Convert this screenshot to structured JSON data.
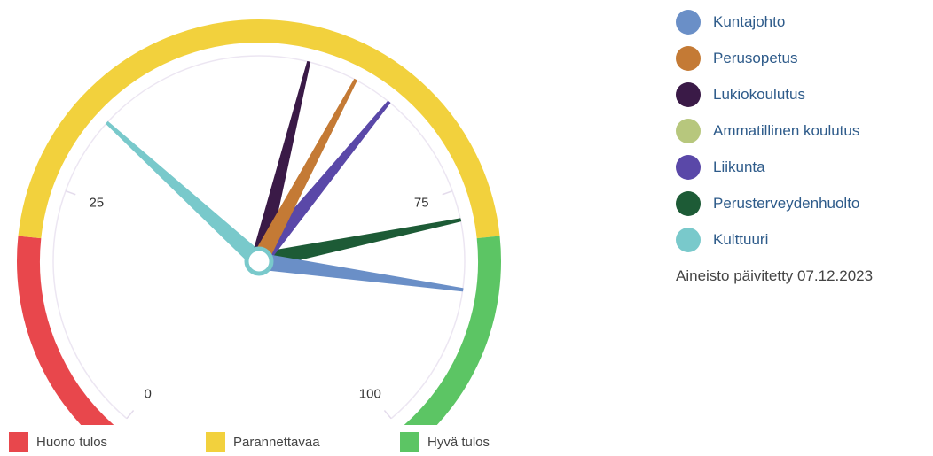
{
  "chart_data": {
    "type": "gauge",
    "scale": {
      "min": 0,
      "max": 100,
      "ticks": [
        0,
        25,
        75,
        100
      ]
    },
    "bands": [
      {
        "name": "Huono tulos",
        "from": 0,
        "to": 20,
        "color": "#e8474c"
      },
      {
        "name": "Parannettavaa",
        "from": 20,
        "to": 80,
        "color": "#f2d13d"
      },
      {
        "name": "Hyvä tulos",
        "from": 80,
        "to": 100,
        "color": "#5cc564"
      }
    ],
    "series": [
      {
        "name": "Kuntajohto",
        "value": 85,
        "color": "#6a8fc7"
      },
      {
        "name": "Perusopetus",
        "value": 60,
        "color": "#c47a35"
      },
      {
        "name": "Lukiokoulutus",
        "value": 55,
        "color": "#3a1a47"
      },
      {
        "name": "Ammatillinen koulutus",
        "value": null,
        "color": "#b7c77d"
      },
      {
        "name": "Liikunta",
        "value": 64,
        "color": "#5a48a8"
      },
      {
        "name": "Perusterveydenhuolto",
        "value": 78,
        "color": "#1d5b36"
      },
      {
        "name": "Kulttuuri",
        "value": 33,
        "color": "#79c9cb"
      }
    ]
  },
  "updated_text": "Aineisto päivitetty 07.12.2023"
}
